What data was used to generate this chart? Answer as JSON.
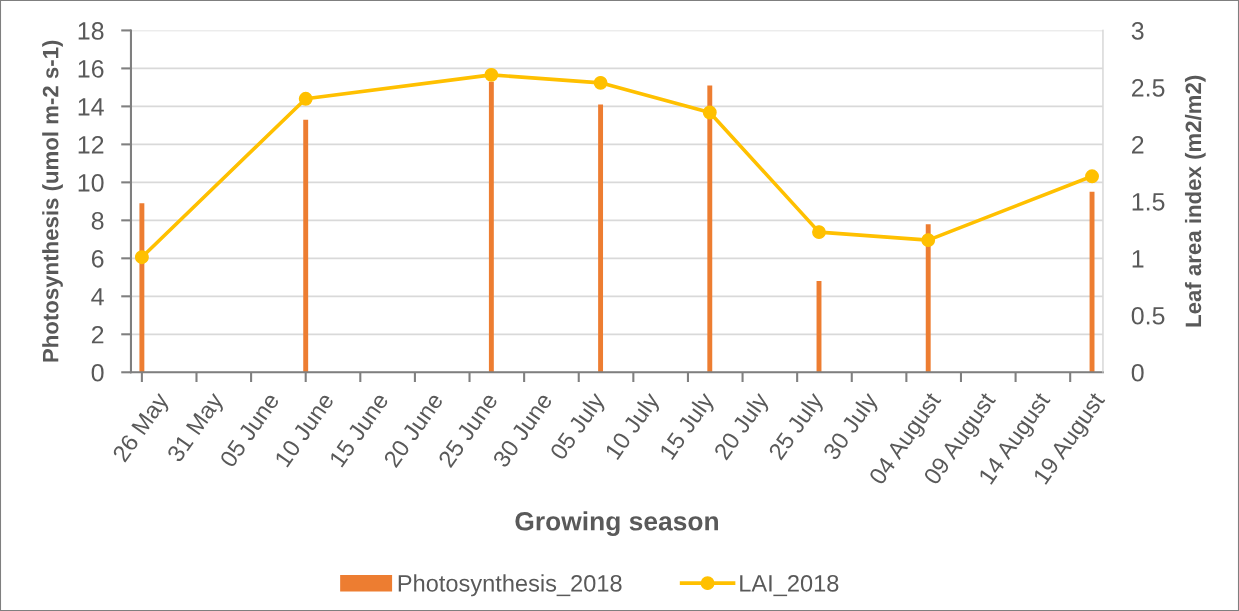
{
  "chart_data": {
    "type": "bar",
    "xlabel": "Growing season",
    "ylabel": "Photosynthesis (umol m-2 s-1)",
    "y2label": "Leaf area index (m2/m2)",
    "x": [
      "2018-05-26",
      "2018-06-10",
      "2018-06-27",
      "2018-07-07",
      "2018-07-17",
      "2018-07-27",
      "2018-08-06",
      "2018-08-21"
    ],
    "series": [
      {
        "name": "Photosynthesis_2018",
        "color": "#ed7d31",
        "values": [
          8.9,
          13.3,
          15.3,
          14.1,
          15.1,
          4.8,
          7.8,
          9.5
        ]
      },
      {
        "name": "LAI_2018",
        "type": "line",
        "axis": "y2",
        "color": "#ffc000",
        "marker": "circle",
        "values": [
          1.01,
          2.4,
          2.61,
          2.54,
          2.28,
          1.23,
          1.16,
          1.72
        ]
      }
    ],
    "xlim": [
      "2018-05-25",
      "2018-08-22"
    ],
    "xticks": [
      {
        "value": "2018-05-26",
        "label": "26 May"
      },
      {
        "value": "2018-05-31",
        "label": "31 May"
      },
      {
        "value": "2018-06-05",
        "label": "05 June"
      },
      {
        "value": "2018-06-10",
        "label": "10 June"
      },
      {
        "value": "2018-06-15",
        "label": "15 June"
      },
      {
        "value": "2018-06-20",
        "label": "20 June"
      },
      {
        "value": "2018-06-25",
        "label": "25 June"
      },
      {
        "value": "2018-06-30",
        "label": "30 June"
      },
      {
        "value": "2018-07-05",
        "label": "05 July"
      },
      {
        "value": "2018-07-10",
        "label": "10 July"
      },
      {
        "value": "2018-07-15",
        "label": "15 July"
      },
      {
        "value": "2018-07-20",
        "label": "20 July"
      },
      {
        "value": "2018-07-25",
        "label": "25 July"
      },
      {
        "value": "2018-07-30",
        "label": "30 July"
      },
      {
        "value": "2018-08-04",
        "label": "04 August"
      },
      {
        "value": "2018-08-09",
        "label": "09 August"
      },
      {
        "value": "2018-08-14",
        "label": "14 August"
      },
      {
        "value": "2018-08-19",
        "label": "19 August"
      }
    ],
    "ylim": [
      0,
      18
    ],
    "yticks": [
      0,
      2,
      4,
      6,
      8,
      10,
      12,
      14,
      16,
      18
    ],
    "y2lim": [
      0,
      3
    ],
    "y2ticks": [
      0,
      0.5,
      1,
      1.5,
      2,
      2.5,
      3
    ],
    "grid": "y",
    "legend": "bottom"
  }
}
